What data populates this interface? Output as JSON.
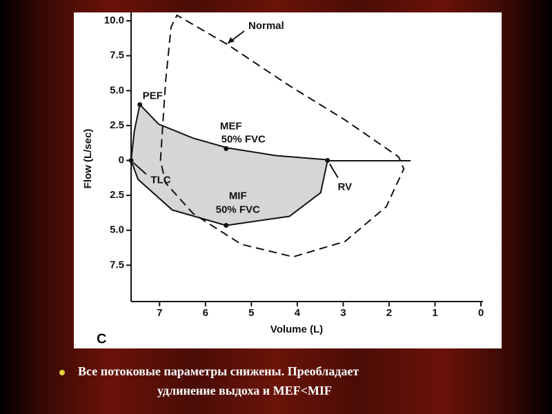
{
  "chart_data": {
    "type": "line",
    "panel_label": "C",
    "x_label": "Volume (L)",
    "y_label": "Flow (L/sec)",
    "xlim": [
      7.62,
      0
    ],
    "ylim": [
      -10.1,
      10.6
    ],
    "xticks": [
      7,
      6,
      5,
      4,
      3,
      2,
      1,
      0
    ],
    "yticks": [
      {
        "value": 10,
        "label": "10.0"
      },
      7.5,
      {
        "value": 5,
        "label": "5.0"
      },
      2.5,
      0,
      {
        "value": -2.5,
        "label": "2.5"
      },
      {
        "value": -5,
        "label": "5.0"
      },
      {
        "value": -7.5,
        "label": "7.5"
      }
    ],
    "series": [
      {
        "name": "Normal",
        "color": "#111111",
        "dashed": true,
        "x": [
          6.98,
          6.87,
          6.75,
          6.62,
          5.52,
          4.17,
          2.96,
          1.79,
          1.68,
          2.06,
          2.96,
          4.09,
          5.22,
          6.27,
          6.87,
          6.98
        ],
        "values": [
          0,
          5.6,
          9.55,
          10.4,
          8.3,
          5.35,
          2.9,
          0.25,
          -0.6,
          -3.3,
          -5.8,
          -6.9,
          -6.0,
          -3.8,
          -1.6,
          0
        ]
      },
      {
        "color": "#111111",
        "fill": "#d6d6d6",
        "x": [
          7.62,
          7.55,
          7.43,
          7.02,
          6.27,
          5.52,
          4.47,
          3.34,
          3.34,
          3.49,
          4.17,
          5.55,
          6.72,
          7.47,
          7.62
        ],
        "values": [
          0,
          2.1,
          4.0,
          2.6,
          1.6,
          0.9,
          0.35,
          0.05,
          0,
          -2.3,
          -4.0,
          -4.65,
          -3.55,
          -1.35,
          0
        ]
      }
    ],
    "markers": [
      {
        "label": "PEF",
        "x": 7.43,
        "y": 4.0
      },
      {
        "label": "MEF",
        "sublabel": "50% FVC",
        "x": 5.55,
        "y": 0.85
      },
      {
        "label": "MIF",
        "sublabel": "50% FVC",
        "x": 5.55,
        "y": -4.65
      },
      {
        "label": "TLC",
        "x": 7.62,
        "y": 0
      },
      {
        "label": "RV",
        "x": 3.34,
        "y": 0
      }
    ]
  },
  "caption": {
    "lines": [
      "Все потоковые параметры снижены. Преобладает",
      "удлинение выдоха и MEF<MIF"
    ]
  }
}
